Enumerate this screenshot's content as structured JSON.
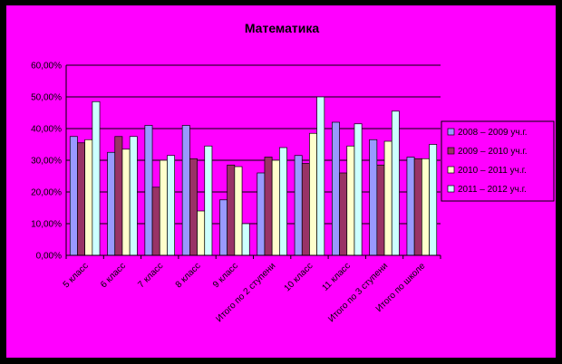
{
  "chart_data": {
    "type": "bar",
    "title": "Математика",
    "xlabel": "",
    "ylabel": "",
    "ylim": [
      0,
      60
    ],
    "yticks": [
      "0,00%",
      "10,00%",
      "20,00%",
      "30,00%",
      "40,00%",
      "50,00%",
      "60,00%"
    ],
    "grid": true,
    "legend_position": "right",
    "categories": [
      "5 класс",
      "6 класс",
      "7 класс",
      "8 класс",
      "9 класс",
      "Итого по 2 ступени",
      "10 класс",
      "11 класс",
      "Итого по 3 ступени",
      "Итого по школе"
    ],
    "series": [
      {
        "name": "2008 – 2009 уч.г.",
        "color": "#9999ff",
        "values": [
          37.5,
          32.5,
          41,
          41,
          17.5,
          26,
          31.5,
          42,
          36.5,
          31
        ]
      },
      {
        "name": "2009 – 2010 уч.г.",
        "color": "#993366",
        "values": [
          35.5,
          37.5,
          21.5,
          30.5,
          28.5,
          31,
          29,
          26,
          28.5,
          30.5
        ]
      },
      {
        "name": "2010 – 2011 уч.г.",
        "color": "#ffffcc",
        "values": [
          36.5,
          33.5,
          30,
          14,
          28,
          30,
          38.5,
          34.5,
          36,
          30.5
        ]
      },
      {
        "name": "2011 – 2012 уч.г.",
        "color": "#ccffff",
        "values": [
          48.5,
          37.5,
          31.5,
          34.5,
          10,
          34,
          50,
          41.5,
          45.5,
          35
        ]
      }
    ]
  }
}
